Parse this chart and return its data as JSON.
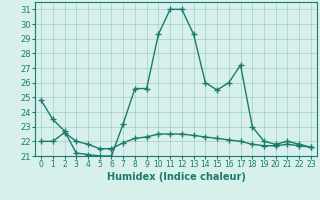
{
  "x": [
    0,
    1,
    2,
    3,
    4,
    5,
    6,
    7,
    8,
    9,
    10,
    11,
    12,
    13,
    14,
    15,
    16,
    17,
    18,
    19,
    20,
    21,
    22,
    23
  ],
  "line1": [
    24.8,
    23.5,
    22.7,
    21.2,
    21.1,
    21.0,
    21.0,
    23.2,
    25.6,
    25.6,
    29.3,
    31.0,
    31.0,
    29.3,
    26.0,
    25.5,
    26.0,
    27.2,
    23.0,
    22.0,
    21.8,
    22.0,
    21.8,
    21.6
  ],
  "line2": [
    22.0,
    22.0,
    22.6,
    22.0,
    21.8,
    21.5,
    21.5,
    21.9,
    22.2,
    22.3,
    22.5,
    22.5,
    22.5,
    22.4,
    22.3,
    22.2,
    22.1,
    22.0,
    21.8,
    21.7,
    21.7,
    21.8,
    21.7,
    21.6
  ],
  "line_color": "#1a7a6e",
  "bg_color": "#d8f0ec",
  "grid_color": "#a0cfc8",
  "xlabel": "Humidex (Indice chaleur)",
  "ylim": [
    21,
    31.5
  ],
  "xlim": [
    -0.5,
    23.5
  ],
  "yticks": [
    21,
    22,
    23,
    24,
    25,
    26,
    27,
    28,
    29,
    30,
    31
  ],
  "xticks": [
    0,
    1,
    2,
    3,
    4,
    5,
    6,
    7,
    8,
    9,
    10,
    11,
    12,
    13,
    14,
    15,
    16,
    17,
    18,
    19,
    20,
    21,
    22,
    23
  ],
  "marker": "+",
  "markersize": 4,
  "linewidth": 1.0,
  "xlabel_fontsize": 7,
  "ytick_fontsize": 6,
  "xtick_fontsize": 5.5
}
